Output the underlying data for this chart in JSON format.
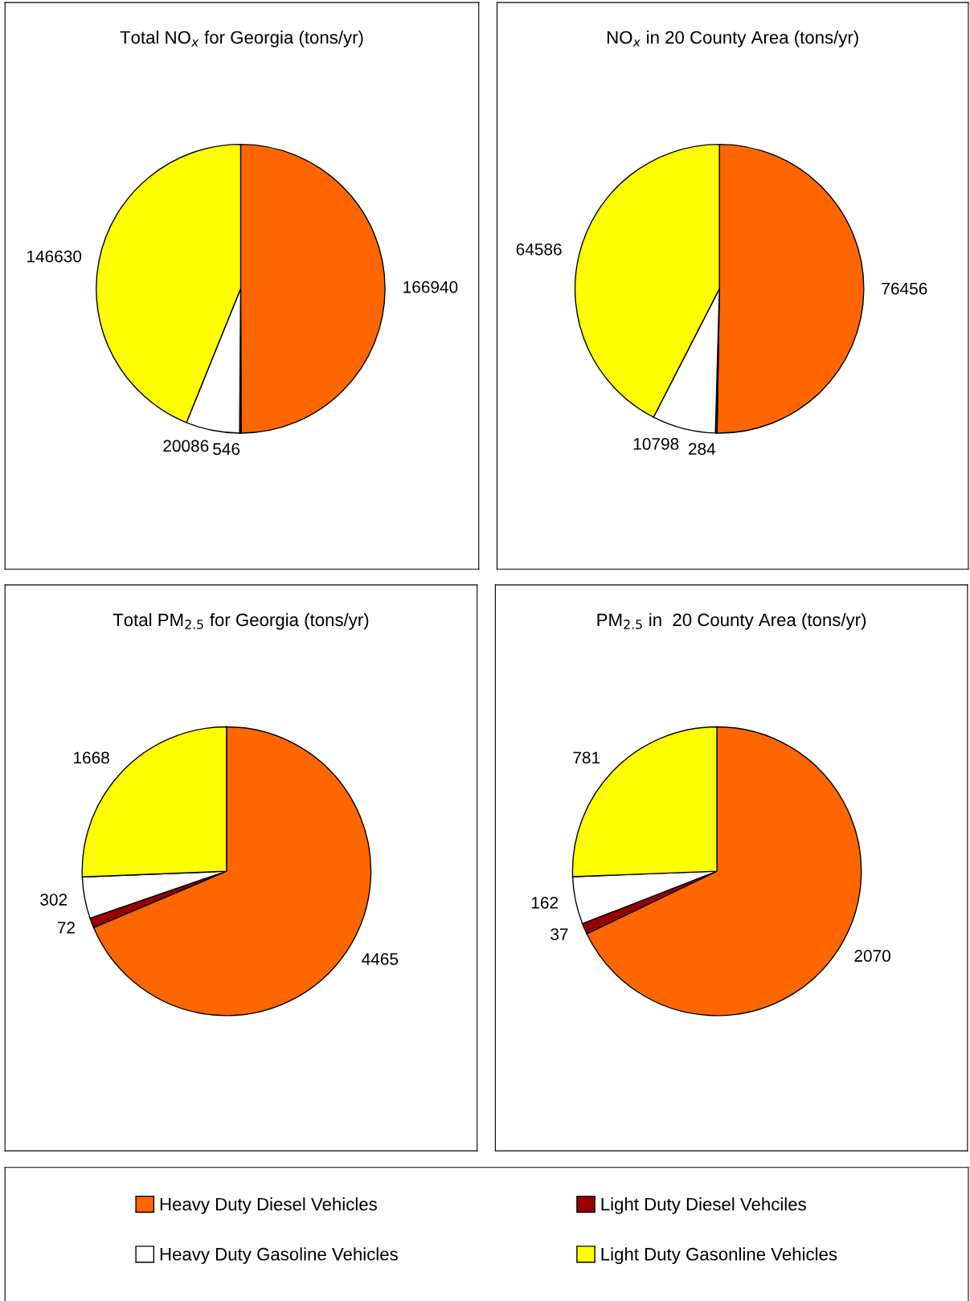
{
  "chart_data": [
    {
      "type": "pie",
      "title": "Total NO$_{x}$ for Georgia (tons/yr)",
      "categories": [
        "Heavy Duty Diesel Vehicles",
        "Light Duty Diesel Vehciles",
        "Heavy Duty Gasoline Vehicles",
        "Light Duty Gasonline Vehicles"
      ],
      "values": [
        166940,
        546,
        20086,
        146630
      ],
      "colors": [
        "#ff6600",
        "#990000",
        "#ffffff",
        "#ffff00"
      ],
      "data_labels": true,
      "legend": "bottom"
    },
    {
      "type": "pie",
      "title": "NO$_{x}$ in 20 County Area (tons/yr)",
      "values": [
        76456,
        284,
        10798,
        64586
      ],
      "colors": [
        "#ff6600",
        "#990000",
        "#ffffff",
        "#ffff00"
      ],
      "data_labels": true
    },
    {
      "type": "pie",
      "title": "Total PM$_{2.5}$ for Georgia (tons/yr)",
      "values": [
        4465,
        72,
        302,
        1668
      ],
      "colors": [
        "#ff6600",
        "#990000",
        "#ffffff",
        "#ffff00"
      ],
      "data_labels": true
    },
    {
      "type": "pie",
      "title": "PM$_{2.5}$ in  20 County Area (tons/yr)",
      "values": [
        2070,
        37,
        162,
        781
      ],
      "colors": [
        "#ff6600",
        "#990000",
        "#ffffff",
        "#ffff00"
      ],
      "data_labels": true
    }
  ]
}
